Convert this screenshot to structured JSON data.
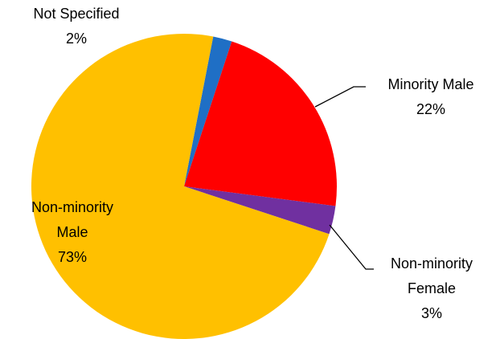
{
  "chart_data": {
    "type": "pie",
    "categories": [
      "Not Specified",
      "Minority Male",
      "Non-minority Female",
      "Non-minority Male"
    ],
    "values": [
      2,
      22,
      3,
      73
    ],
    "value_labels": [
      "2%",
      "22%",
      "3%",
      "73%"
    ],
    "colors": [
      "#1f6fc5",
      "#ff0000",
      "#7030a0",
      "#ffc000"
    ]
  }
}
